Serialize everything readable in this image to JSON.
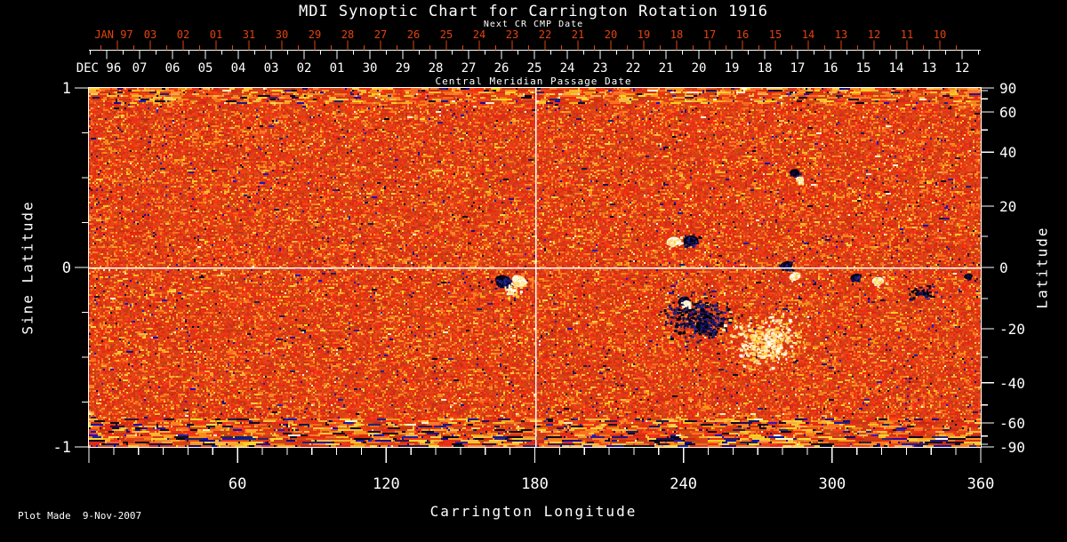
{
  "header": {
    "title": "MDI Synoptic Chart for Carrington Rotation 1916",
    "next_cr_label": "Next CR CMP Date",
    "cmp_label": "Central Meridian Passage Date"
  },
  "footer": {
    "plot_made": "Plot Made  9-Nov-2007"
  },
  "colors": {
    "background": "#000000",
    "foreground": "#ffffff",
    "next_cr_red": "#e5430d",
    "grid_line": "#ffffff"
  },
  "chart_data": {
    "type": "heatmap",
    "title": "MDI Synoptic Chart for Carrington Rotation 1916",
    "subtitle_top": "Next CR CMP Date",
    "subtitle_cmp": "Central Meridian Passage Date",
    "xlabel": "Carrington Longitude",
    "xlim": [
      0,
      360
    ],
    "x_major_ticks": [
      60,
      120,
      180,
      240,
      300,
      360
    ],
    "x_minor_step_deg": 10,
    "y_left_label": "Sine Latitude",
    "y_left_lim": [
      -1,
      1
    ],
    "y_left_major_ticks": [
      1,
      0,
      -1
    ],
    "y_left_minor_step": 0.25,
    "y_right_label": "Latitude",
    "y_right_ticks": [
      90,
      60,
      40,
      20,
      0,
      -20,
      -40,
      -60,
      -90
    ],
    "y_right_minor_ticks": [
      80,
      70,
      50,
      30,
      10,
      -10,
      -30,
      -50,
      -70,
      -80
    ],
    "grid": {
      "horizontal_at_sine_latitude": 0,
      "vertical_at_longitude": 180
    },
    "top_axes": {
      "next_cr": {
        "month_label": "JAN 97",
        "day_labels": [
          "03",
          "02",
          "01",
          "31",
          "30",
          "29",
          "28",
          "27",
          "26",
          "25",
          "24",
          "23",
          "22",
          "21",
          "20",
          "19",
          "18",
          "17",
          "16",
          "15",
          "14",
          "13",
          "12",
          "11",
          "10"
        ]
      },
      "cmp": {
        "month_label": "DEC 96",
        "day_labels": [
          "07",
          "06",
          "05",
          "04",
          "03",
          "02",
          "01",
          "30",
          "29",
          "28",
          "27",
          "26",
          "25",
          "24",
          "23",
          "22",
          "21",
          "20",
          "19",
          "18",
          "17",
          "16",
          "15",
          "14",
          "13",
          "12"
        ]
      }
    },
    "palette": {
      "base_red": "#c82614",
      "bright_orange_red": "#f25a1e",
      "light_orange": "#f98a2a",
      "yellow": "#ffc23c",
      "cream": "#fff3cf",
      "navy": "#14145e",
      "black_speck": "#05051a"
    },
    "noise_seed": 19161,
    "polar_bands": {
      "description": "noisier horizontally-streaked bands of yellow/navy/black speckles at top and bottom (polar) edges",
      "top_extent_sine": [
        0.93,
        1.0
      ],
      "bottom_extent_sine": [
        -1.0,
        -0.84
      ]
    },
    "features": [
      {
        "name": "ar-bipole-167-dark",
        "longitude": 167.5,
        "sine_latitude": -0.08,
        "polarity": "negative",
        "style": "solid",
        "size_deg": 3.4,
        "dots": 70
      },
      {
        "name": "ar-bipole-174-white",
        "longitude": 173.8,
        "sine_latitude": -0.075,
        "polarity": "positive",
        "style": "solid",
        "size_deg": 2.9,
        "dots": 55
      },
      {
        "name": "plage-170",
        "longitude": 170.5,
        "sine_latitude": -0.12,
        "polarity": "positive",
        "style": "scatter",
        "size_deg": 4,
        "dots": 40
      },
      {
        "name": "ar-236-white",
        "longitude": 236,
        "sine_latitude": 0.145,
        "polarity": "positive",
        "style": "solid",
        "size_deg": 2.6,
        "dots": 45
      },
      {
        "name": "ar-243-dark",
        "longitude": 243,
        "sine_latitude": 0.15,
        "polarity": "negative",
        "style": "solid",
        "size_deg": 2.8,
        "dots": 55
      },
      {
        "name": "ar-281-dark",
        "longitude": 281.5,
        "sine_latitude": 0.01,
        "polarity": "negative",
        "style": "solid",
        "size_deg": 2.4,
        "dots": 40
      },
      {
        "name": "ar-285-white",
        "longitude": 285,
        "sine_latitude": -0.05,
        "polarity": "positive",
        "style": "solid",
        "size_deg": 2.2,
        "dots": 35
      },
      {
        "name": "diffuse-dark-cluster-246",
        "longitude": 246,
        "sine_latitude": -0.28,
        "polarity": "negative",
        "style": "scatter",
        "size_deg": 14,
        "dots": 320
      },
      {
        "name": "dark-clump-240",
        "longitude": 240,
        "sine_latitude": -0.185,
        "polarity": "negative",
        "style": "solid",
        "size_deg": 2.2,
        "dots": 30
      },
      {
        "name": "white-spot-241",
        "longitude": 241.5,
        "sine_latitude": -0.2,
        "polarity": "positive",
        "style": "solid",
        "size_deg": 1.6,
        "dots": 20
      },
      {
        "name": "dark-clump-247",
        "longitude": 247.5,
        "sine_latitude": -0.33,
        "polarity": "negative",
        "style": "solid",
        "size_deg": 2.4,
        "dots": 35
      },
      {
        "name": "plage-273-southeast",
        "longitude": 273,
        "sine_latitude": -0.4,
        "polarity": "positive",
        "style": "scatter",
        "size_deg": 16,
        "dots": 340
      },
      {
        "name": "ar-small-285-north-dark",
        "longitude": 284.8,
        "sine_latitude": 0.53,
        "polarity": "negative",
        "style": "solid",
        "size_deg": 1.8,
        "dots": 25
      },
      {
        "name": "ar-small-287-north-white",
        "longitude": 287,
        "sine_latitude": 0.49,
        "polarity": "positive",
        "style": "solid",
        "size_deg": 1.5,
        "dots": 18
      },
      {
        "name": "ar-309-dark",
        "longitude": 309.5,
        "sine_latitude": -0.055,
        "polarity": "negative",
        "style": "solid",
        "size_deg": 2.0,
        "dots": 30
      },
      {
        "name": "ar-318-white",
        "longitude": 318.5,
        "sine_latitude": -0.075,
        "polarity": "positive",
        "style": "solid",
        "size_deg": 2.2,
        "dots": 35
      },
      {
        "name": "dark-specks-336",
        "longitude": 336,
        "sine_latitude": -0.14,
        "polarity": "negative",
        "style": "scatter",
        "size_deg": 5,
        "dots": 45
      },
      {
        "name": "dark-spot-355",
        "longitude": 355,
        "sine_latitude": -0.05,
        "polarity": "negative",
        "style": "solid",
        "size_deg": 1.6,
        "dots": 18
      }
    ]
  }
}
